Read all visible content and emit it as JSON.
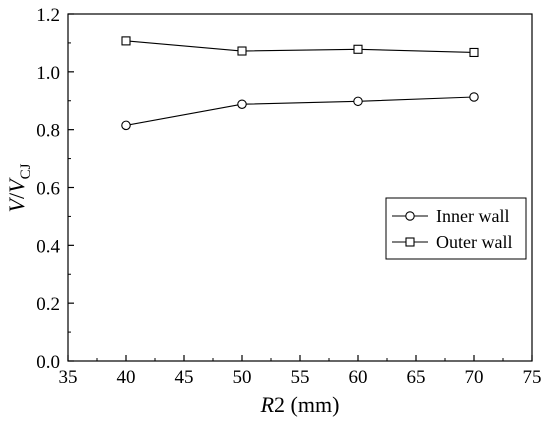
{
  "chart_data": {
    "type": "line",
    "x": [
      40,
      50,
      60,
      70
    ],
    "series": [
      {
        "name": "Inner wall",
        "marker": "circle",
        "values": [
          0.815,
          0.888,
          0.898,
          0.913
        ]
      },
      {
        "name": "Outer wall",
        "marker": "square",
        "values": [
          1.107,
          1.072,
          1.078,
          1.067
        ]
      }
    ],
    "xlim": [
      35,
      75
    ],
    "ylim": [
      0.0,
      1.2
    ],
    "x_ticks": [
      "35",
      "40",
      "45",
      "50",
      "55",
      "60",
      "65",
      "70",
      "75"
    ],
    "y_ticks": [
      "0.0",
      "0.2",
      "0.4",
      "0.6",
      "0.8",
      "1.0",
      "1.2"
    ],
    "xlabel": {
      "italic": "R",
      "rest": "2 (mm)"
    },
    "ylabel": {
      "v1": "V",
      "slash": "/",
      "v2": "V",
      "sub": "CJ"
    },
    "legend_position": "center-right",
    "grid": false,
    "line_color": "#000000"
  }
}
